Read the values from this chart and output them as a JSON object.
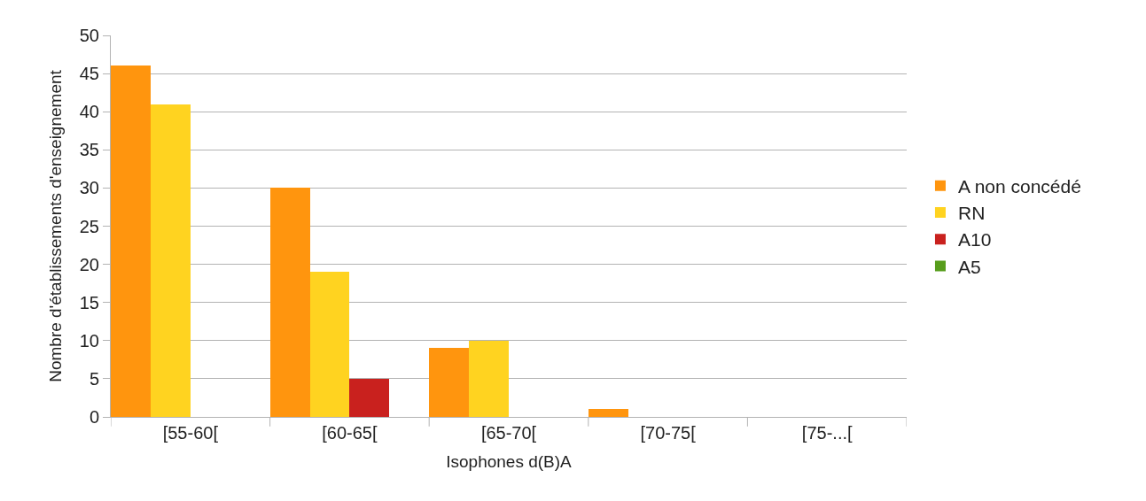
{
  "chart_data": {
    "type": "bar",
    "xlabel": "Isophones d(B)A",
    "ylabel": "Nombre d'établissements d'enseignement",
    "categories": [
      "[55-60[",
      "[60-65[",
      "[65-70[",
      "[70-75[",
      "[75-...["
    ],
    "series": [
      {
        "name": "A non concédé",
        "color": "#ff950e",
        "values": [
          46,
          30,
          9,
          1,
          0
        ]
      },
      {
        "name": "RN",
        "color": "#ffd320",
        "values": [
          41,
          19,
          10,
          0,
          0
        ]
      },
      {
        "name": "A10",
        "color": "#c9211e",
        "values": [
          0,
          5,
          0,
          0,
          0
        ]
      },
      {
        "name": "A5",
        "color": "#579d1c",
        "values": [
          0,
          0,
          0,
          0,
          0
        ]
      }
    ],
    "ylim": [
      0,
      50
    ],
    "yticks": [
      0,
      5,
      10,
      15,
      20,
      25,
      30,
      35,
      40,
      45,
      50
    ],
    "grid": "y",
    "legend": "right"
  }
}
